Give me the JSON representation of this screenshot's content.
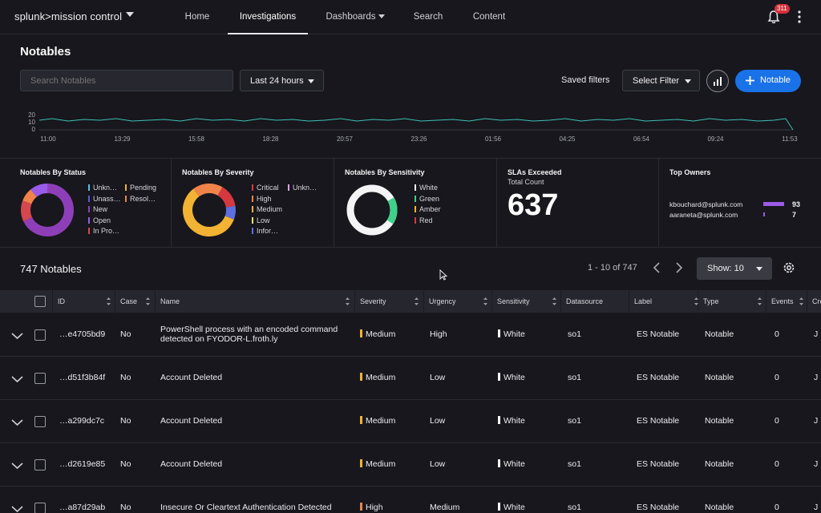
{
  "nav": {
    "brand": "splunk>mission control",
    "items": [
      "Home",
      "Investigations",
      "Dashboards",
      "Search",
      "Content"
    ],
    "notification_count": "311"
  },
  "header": {
    "title": "Notables",
    "search_placeholder": "Search Notables",
    "time_range": "Last 24 hours",
    "saved_filters": "Saved filters",
    "select_filter": "Select Filter",
    "new_button": "Notable"
  },
  "timeline": {
    "y_ticks": [
      "20",
      "10",
      "0"
    ],
    "x_ticks": [
      "11:00",
      "13:29",
      "15:58",
      "18:28",
      "20:57",
      "23:26",
      "01:56",
      "04:25",
      "06:54",
      "09:24",
      "11:53"
    ],
    "color": "#3ec0b4"
  },
  "panels": {
    "status": {
      "title": "Notables By Status",
      "legend": [
        {
          "label": "Unkn…",
          "color": "#4fc3e8"
        },
        {
          "label": "Pending",
          "color": "#f2b233"
        },
        {
          "label": "Unass…",
          "color": "#5a5ad6"
        },
        {
          "label": "Resol…",
          "color": "#f0834a"
        },
        {
          "label": "New",
          "color": "#8e3fb8"
        },
        {
          "label": "Open",
          "color": "#9a5be8"
        },
        {
          "label": "In Pro…",
          "color": "#d4474f"
        }
      ]
    },
    "severity": {
      "title": "Notables By Severity",
      "legend": [
        {
          "label": "Critical",
          "color": "#d4393f"
        },
        {
          "label": "Unkn…",
          "color": "#e0a0e8"
        },
        {
          "label": "High",
          "color": "#f0834a"
        },
        {
          "label": "Medium",
          "color": "#f2b233"
        },
        {
          "label": "Low",
          "color": "#f4e36a"
        },
        {
          "label": "Infor…",
          "color": "#5f6ee0"
        }
      ]
    },
    "sensitivity": {
      "title": "Notables By Sensitivity",
      "legend": [
        {
          "label": "White",
          "color": "#f4f4f6"
        },
        {
          "label": "Green",
          "color": "#3fd08a"
        },
        {
          "label": "Amber",
          "color": "#f2b233"
        },
        {
          "label": "Red",
          "color": "#d4393f"
        }
      ]
    },
    "sla": {
      "title": "SLAs Exceeded",
      "subtitle": "Total Count",
      "value": "637"
    },
    "owners": {
      "title": "Top Owners",
      "items": [
        {
          "name": "kbouchard@splunk.com",
          "count": "93",
          "fraction": 0.93
        },
        {
          "name": "aaraneta@splunk.com",
          "count": "7",
          "fraction": 0.07
        }
      ]
    }
  },
  "list": {
    "count_label": "747 Notables",
    "range": "1 - 10 of 747",
    "show": "Show: 10"
  },
  "table": {
    "columns": [
      "ID",
      "Case",
      "Name",
      "Severity",
      "Urgency",
      "Sensitivity",
      "Datasource",
      "Label",
      "Type",
      "Events",
      "Cre"
    ],
    "rows": [
      {
        "id": "…e4705bd9",
        "case": "No",
        "name": "PowerShell process with an encoded command",
        "name2": "detected on FYODOR-L.froth.ly",
        "severity": "Medium",
        "sev_color": "#f2b233",
        "urgency": "High",
        "sensitivity": "White",
        "datasource": "so1",
        "label": "ES Notable",
        "type": "Notable",
        "events": "0",
        "created": "J"
      },
      {
        "id": "…d51f3b84f",
        "case": "No",
        "name": "Account Deleted",
        "name2": "",
        "severity": "Medium",
        "sev_color": "#f2b233",
        "urgency": "Low",
        "sensitivity": "White",
        "datasource": "so1",
        "label": "ES Notable",
        "type": "Notable",
        "events": "0",
        "created": "J"
      },
      {
        "id": "…a299dc7c",
        "case": "No",
        "name": "Account Deleted",
        "name2": "",
        "severity": "Medium",
        "sev_color": "#f2b233",
        "urgency": "Low",
        "sensitivity": "White",
        "datasource": "so1",
        "label": "ES Notable",
        "type": "Notable",
        "events": "0",
        "created": "J"
      },
      {
        "id": "…d2619e85",
        "case": "No",
        "name": "Account Deleted",
        "name2": "",
        "severity": "Medium",
        "sev_color": "#f2b233",
        "urgency": "Low",
        "sensitivity": "White",
        "datasource": "so1",
        "label": "ES Notable",
        "type": "Notable",
        "events": "0",
        "created": "J"
      },
      {
        "id": "…a87d29ab",
        "case": "No",
        "name": "Insecure Or Cleartext Authentication Detected",
        "name2": "",
        "severity": "High",
        "sev_color": "#f0834a",
        "urgency": "Medium",
        "sensitivity": "White",
        "datasource": "so1",
        "label": "ES Notable",
        "type": "Notable",
        "events": "0",
        "created": "J"
      }
    ]
  }
}
